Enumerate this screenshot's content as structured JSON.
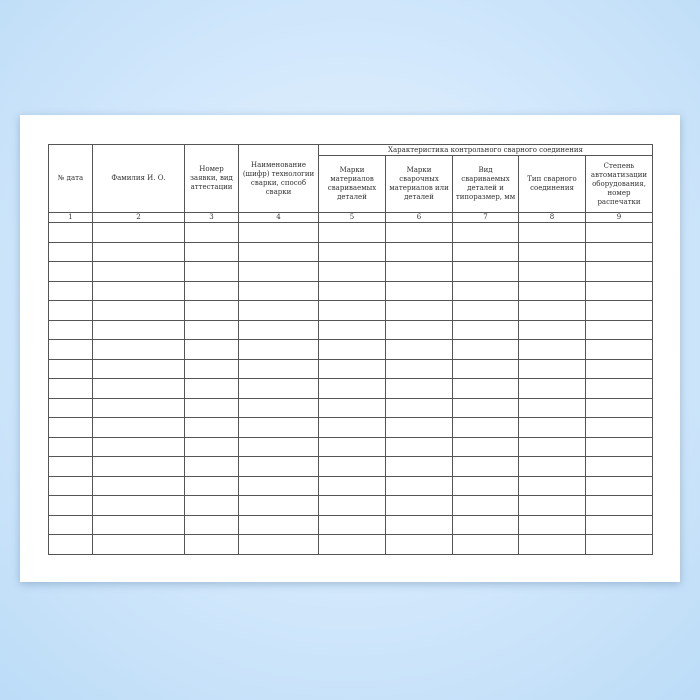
{
  "headers": {
    "date": "№ дата",
    "name": "Фамилия И. О.",
    "request": "Номер заявки, вид аттестации",
    "technology": "Наименование (шифр) технологии сварки, способ сварки",
    "group": "Характеристика контрольного сварного соединения",
    "materials": "Марки материалов свариваемых деталей",
    "welding_materials": "Марки сварочных материалов или деталей",
    "parts": "Вид свариваемых деталей и типоразмер, мм",
    "joint_type": "Тип сварного соединения",
    "automation": "Степень автоматизации оборудования, номер распечатки"
  },
  "column_numbers": [
    "1",
    "2",
    "3",
    "4",
    "5",
    "6",
    "7",
    "8",
    "9"
  ],
  "empty_rows": 17
}
